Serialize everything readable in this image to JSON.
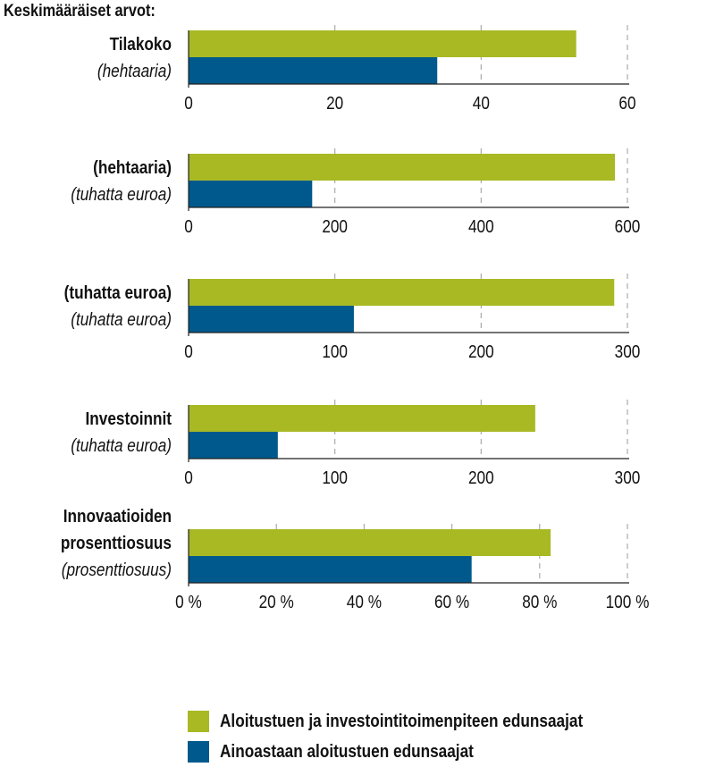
{
  "heading": "Keskimääräiset arvot:",
  "colors": {
    "green": "#a8b924",
    "blue": "#00598c"
  },
  "legend": [
    {
      "label": "Aloitustuen ja investointitoimenpiteen edunsaajat",
      "color": "#a8b924"
    },
    {
      "label": "Ainoastaan aloitustuen edunsaajat",
      "color": "#00598c"
    }
  ],
  "chart_data": [
    {
      "type": "bar",
      "orientation": "horizontal",
      "label_lines": [
        "Tilakoko"
      ],
      "unit_label": "(hehtaaria)",
      "series": [
        {
          "name": "Aloitustuen ja investointitoimenpiteen edunsaajat",
          "values": [
            53
          ]
        },
        {
          "name": "Ainoastaan aloitustuen edunsaajat",
          "values": [
            34
          ]
        }
      ],
      "xlim": [
        0,
        60
      ],
      "ticks": [
        0,
        20,
        40,
        60
      ],
      "tick_labels": [
        "0",
        "20",
        "40",
        "60"
      ]
    },
    {
      "type": "bar",
      "orientation": "horizontal",
      "label_lines": [
        "(hehtaaria)"
      ],
      "unit_label": "(tuhatta euroa)",
      "series": [
        {
          "name": "Aloitustuen ja investointitoimenpiteen edunsaajat",
          "values": [
            583
          ]
        },
        {
          "name": "Ainoastaan aloitustuen edunsaajat",
          "values": [
            169
          ]
        }
      ],
      "xlim": [
        0,
        600
      ],
      "ticks": [
        0,
        200,
        400,
        600
      ],
      "tick_labels": [
        "0",
        "200",
        "400",
        "600"
      ]
    },
    {
      "type": "bar",
      "orientation": "horizontal",
      "label_lines": [
        "(tuhatta euroa)"
      ],
      "unit_label": "(tuhatta euroa)",
      "series": [
        {
          "name": "Aloitustuen ja investointitoimenpiteen edunsaajat",
          "values": [
            291
          ]
        },
        {
          "name": "Ainoastaan aloitustuen edunsaajat",
          "values": [
            113
          ]
        }
      ],
      "xlim": [
        0,
        300
      ],
      "ticks": [
        0,
        100,
        200,
        300
      ],
      "tick_labels": [
        "0",
        "100",
        "200",
        "300"
      ]
    },
    {
      "type": "bar",
      "orientation": "horizontal",
      "label_lines": [
        "Investoinnit"
      ],
      "unit_label": "(tuhatta euroa)",
      "series": [
        {
          "name": "Aloitustuen ja investointitoimenpiteen edunsaajat",
          "values": [
            237
          ]
        },
        {
          "name": "Ainoastaan aloitustuen edunsaajat",
          "values": [
            61
          ]
        }
      ],
      "xlim": [
        0,
        300
      ],
      "ticks": [
        0,
        100,
        200,
        300
      ],
      "tick_labels": [
        "0",
        "100",
        "200",
        "300"
      ]
    },
    {
      "type": "bar",
      "orientation": "horizontal",
      "label_lines": [
        "Innovaatioiden",
        "prosenttiosuus"
      ],
      "unit_label": "(prosenttiosuus)",
      "series": [
        {
          "name": "Aloitustuen ja investointitoimenpiteen edunsaajat",
          "values": [
            82.5
          ]
        },
        {
          "name": "Ainoastaan aloitustuen edunsaajat",
          "values": [
            64.5
          ]
        }
      ],
      "xlim": [
        0,
        100
      ],
      "ticks": [
        0,
        20,
        40,
        60,
        80,
        100
      ],
      "tick_labels": [
        "0 %",
        "20 %",
        "40 %",
        "60 %",
        "80 %",
        "100 %"
      ]
    }
  ]
}
